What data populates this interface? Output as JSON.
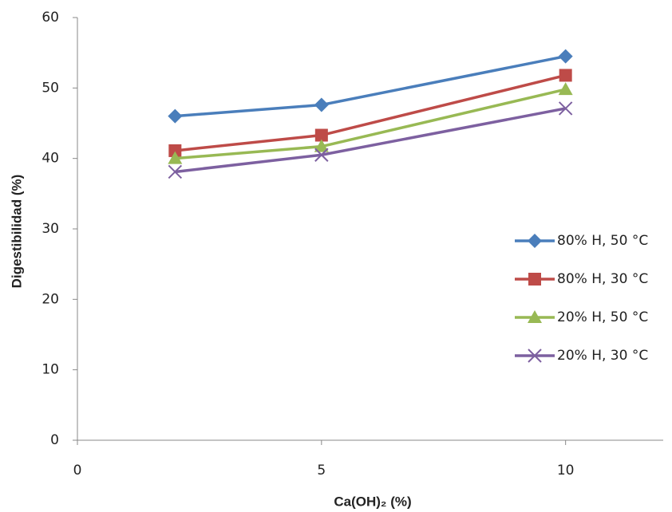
{
  "chart_data": {
    "type": "line",
    "x_label": "Ca(OH)₂ (%)",
    "y_label": "Digestibilidad (%)",
    "x": [
      2,
      5,
      10
    ],
    "xlim": [
      0,
      12
    ],
    "xticks": [
      0,
      5,
      10
    ],
    "ylim": [
      0,
      60
    ],
    "yticks": [
      0,
      10,
      20,
      30,
      40,
      50,
      60
    ],
    "grid": false,
    "legend": "right",
    "series": [
      {
        "name": "80% H, 50 °C",
        "color": "#4a7ebb",
        "marker": "diamond",
        "values": [
          46.0,
          47.6,
          54.5
        ]
      },
      {
        "name": "80% H, 30 °C",
        "color": "#be4b48",
        "marker": "square",
        "values": [
          41.1,
          43.3,
          51.8
        ]
      },
      {
        "name": "20% H, 50 °C",
        "color": "#98b954",
        "marker": "triangle",
        "values": [
          40.0,
          41.7,
          49.8
        ]
      },
      {
        "name": "20% H, 30 °C",
        "color": "#7d60a0",
        "marker": "x",
        "values": [
          38.1,
          40.5,
          47.1
        ]
      }
    ]
  }
}
